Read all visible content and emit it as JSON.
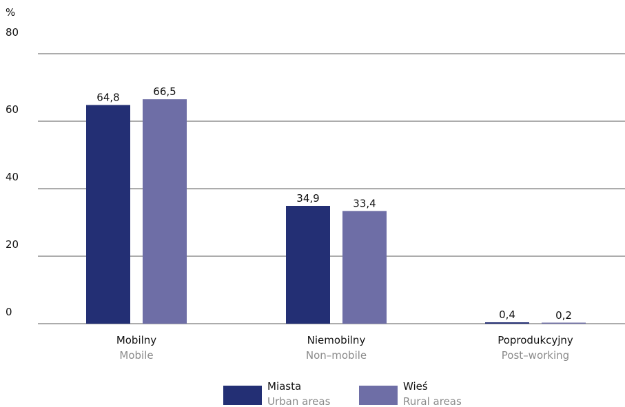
{
  "chart_data": {
    "type": "bar",
    "ylabel": "%",
    "ylim": [
      0,
      80
    ],
    "yticks": [
      "0",
      "20",
      "40",
      "60",
      "80"
    ],
    "categories": [
      {
        "label": "Mobilny",
        "sublabel": "Mobile"
      },
      {
        "label": "Niemobilny",
        "sublabel": "Non–mobile"
      },
      {
        "label": "Poprodukcyjny",
        "sublabel": "Post–working"
      }
    ],
    "series": [
      {
        "name": "Miasta",
        "subname": "Urban areas",
        "color": "#232f74",
        "values": [
          64.8,
          34.9,
          0.4
        ],
        "labels": [
          "64,8",
          "34,9",
          "0,4"
        ]
      },
      {
        "name": "Wieś",
        "subname": "Rural areas",
        "color": "#6e6ea6",
        "values": [
          66.5,
          33.4,
          0.2
        ],
        "labels": [
          "66,5",
          "33,4",
          "0,2"
        ]
      }
    ],
    "grid": true,
    "legend": "bottom"
  }
}
